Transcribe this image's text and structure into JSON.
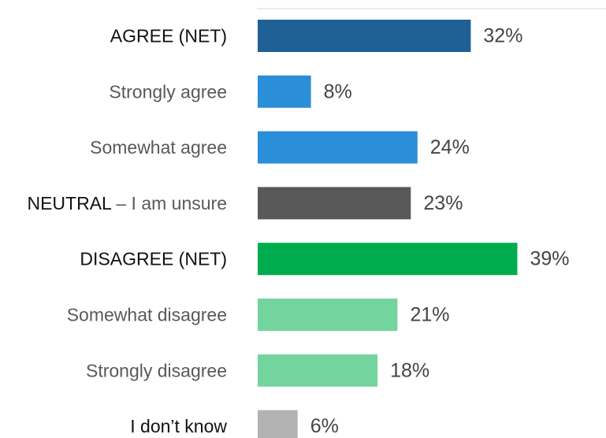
{
  "chart_data": {
    "type": "bar",
    "orientation": "horizontal",
    "value_suffix": "%",
    "xlim": [
      0,
      42
    ],
    "grid": false,
    "categories": [
      {
        "label": "AGREE (NET)",
        "emphasis": "",
        "rest": "",
        "value": 32,
        "color": "#1f6096",
        "net": true
      },
      {
        "label": "Strongly agree",
        "emphasis": "",
        "rest": "",
        "value": 8,
        "color": "#2b8ed8",
        "net": false
      },
      {
        "label": "Somewhat agree",
        "emphasis": "",
        "rest": "",
        "value": 24,
        "color": "#2b8ed8",
        "net": false
      },
      {
        "label": "",
        "emphasis": "NEUTRAL",
        "rest": " – I am unsure",
        "value": 23,
        "color": "#595959",
        "net": false
      },
      {
        "label": "DISAGREE (NET)",
        "emphasis": "",
        "rest": "",
        "value": 39,
        "color": "#00ad4e",
        "net": true
      },
      {
        "label": "Somewhat disagree",
        "emphasis": "",
        "rest": "",
        "value": 21,
        "color": "#74d49e",
        "net": false
      },
      {
        "label": "Strongly disagree",
        "emphasis": "",
        "rest": "",
        "value": 18,
        "color": "#74d49e",
        "net": false
      },
      {
        "label": "I don’t know",
        "emphasis": "",
        "rest": "",
        "value": 6,
        "color": "#b3b3b3",
        "net": true
      }
    ]
  }
}
